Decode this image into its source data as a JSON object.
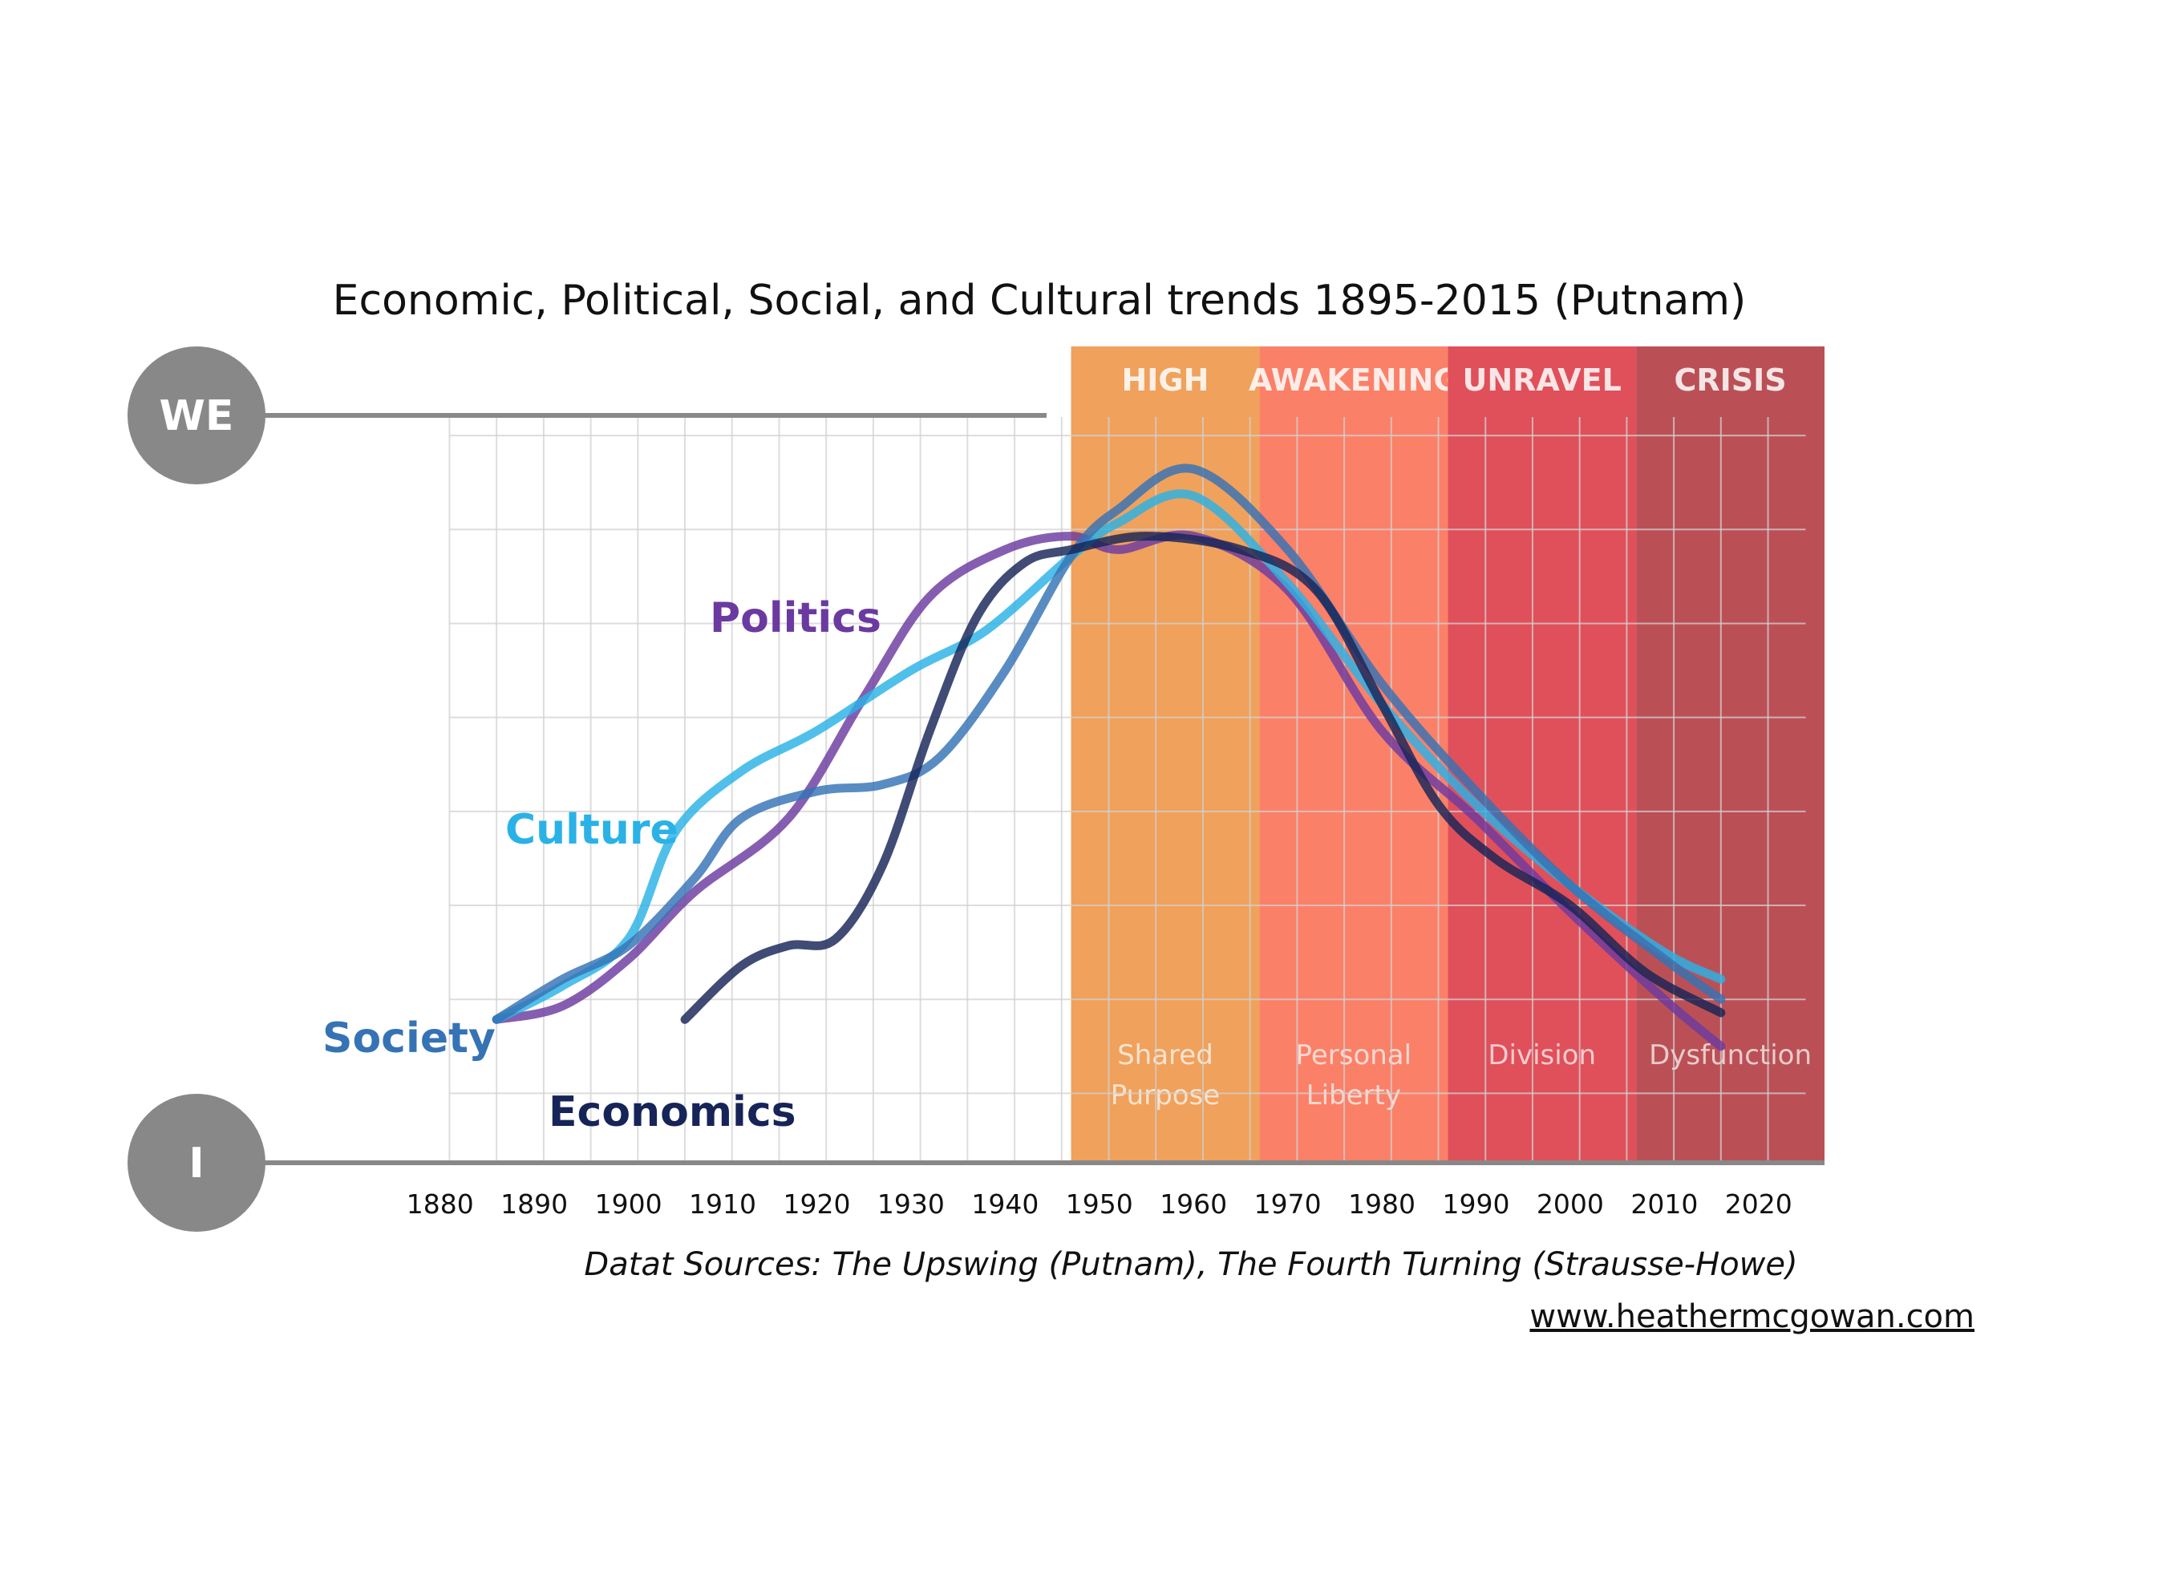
{
  "chart_data": {
    "type": "line",
    "title": "Economic, Political, Social, and Cultural trends 1895-2015 (Putnam)",
    "xlabel": "",
    "ylabel": "",
    "xlim": [
      1875,
      2027
    ],
    "ylim": [
      0,
      100
    ],
    "y_axis_labels": {
      "top": "WE",
      "bottom": "I"
    },
    "x_ticks": [
      1880,
      1890,
      1900,
      1910,
      1920,
      1930,
      1940,
      1950,
      1960,
      1970,
      1980,
      1990,
      2000,
      2010,
      2020
    ],
    "eras": [
      {
        "name": "HIGH",
        "subtitle_lines": [
          "Shared",
          "Purpose"
        ],
        "start": 1947,
        "end": 1967,
        "color": "#f0a15c"
      },
      {
        "name": "AWAKENING",
        "subtitle_lines": [
          "Personal",
          "Liberty"
        ],
        "start": 1967,
        "end": 1987,
        "color": "#fb8068"
      },
      {
        "name": "UNRAVEL",
        "subtitle_lines": [
          "Division"
        ],
        "start": 1987,
        "end": 2007,
        "color": "#e0505a"
      },
      {
        "name": "CRISIS",
        "subtitle_lines": [
          "Dysfunction"
        ],
        "start": 2007,
        "end": 2027,
        "color": "#ba5056"
      }
    ],
    "series": [
      {
        "name": "Politics",
        "color": "#6b3aa0",
        "x": [
          1886,
          1893,
          1900,
          1907,
          1917,
          1925,
          1932,
          1940,
          1947,
          1952,
          1960,
          1970,
          1980,
          1990,
          2000,
          2010,
          2016
        ],
        "y": [
          10,
          12,
          19,
          29,
          40,
          58,
          73,
          80,
          82,
          80,
          82,
          74,
          53,
          40,
          26,
          13,
          6
        ]
      },
      {
        "name": "Culture",
        "color": "#2ab2e6",
        "x": [
          1886,
          1893,
          1900,
          1905,
          1912,
          1920,
          1930,
          1938,
          1947,
          1952,
          1960,
          1970,
          1980,
          1990,
          2000,
          2010,
          2016
        ],
        "y": [
          10,
          15,
          22,
          38,
          47,
          53,
          62,
          68,
          79,
          84,
          88,
          75,
          57,
          42,
          30,
          20,
          16
        ]
      },
      {
        "name": "Society",
        "color": "#3573b5",
        "x": [
          1886,
          1893,
          1900,
          1907,
          1912,
          1920,
          1927,
          1933,
          1940,
          1947,
          1952,
          1960,
          1970,
          1980,
          1990,
          2000,
          2010,
          2016
        ],
        "y": [
          10,
          16,
          21,
          31,
          40,
          44,
          45,
          49,
          62,
          79,
          86,
          92,
          80,
          60,
          44,
          30,
          19,
          13
        ]
      },
      {
        "name": "Economics",
        "color": "#162458",
        "x": [
          1906,
          1912,
          1917,
          1922,
          1927,
          1932,
          1937,
          1942,
          1947,
          1955,
          1965,
          1973,
          1980,
          1986,
          1992,
          2000,
          2008,
          2016
        ],
        "y": [
          10,
          18,
          21,
          22,
          33,
          53,
          70,
          78,
          80,
          82,
          80,
          74,
          57,
          42,
          34,
          27,
          17,
          11
        ]
      }
    ],
    "legend": "none (series labeled inline)",
    "grid": true
  },
  "annotations": {
    "source": "Datat Sources: The Upswing (Putnam), The Fourth Turning (Strausse-Howe)",
    "url": "www.heathermcgowan.com"
  }
}
